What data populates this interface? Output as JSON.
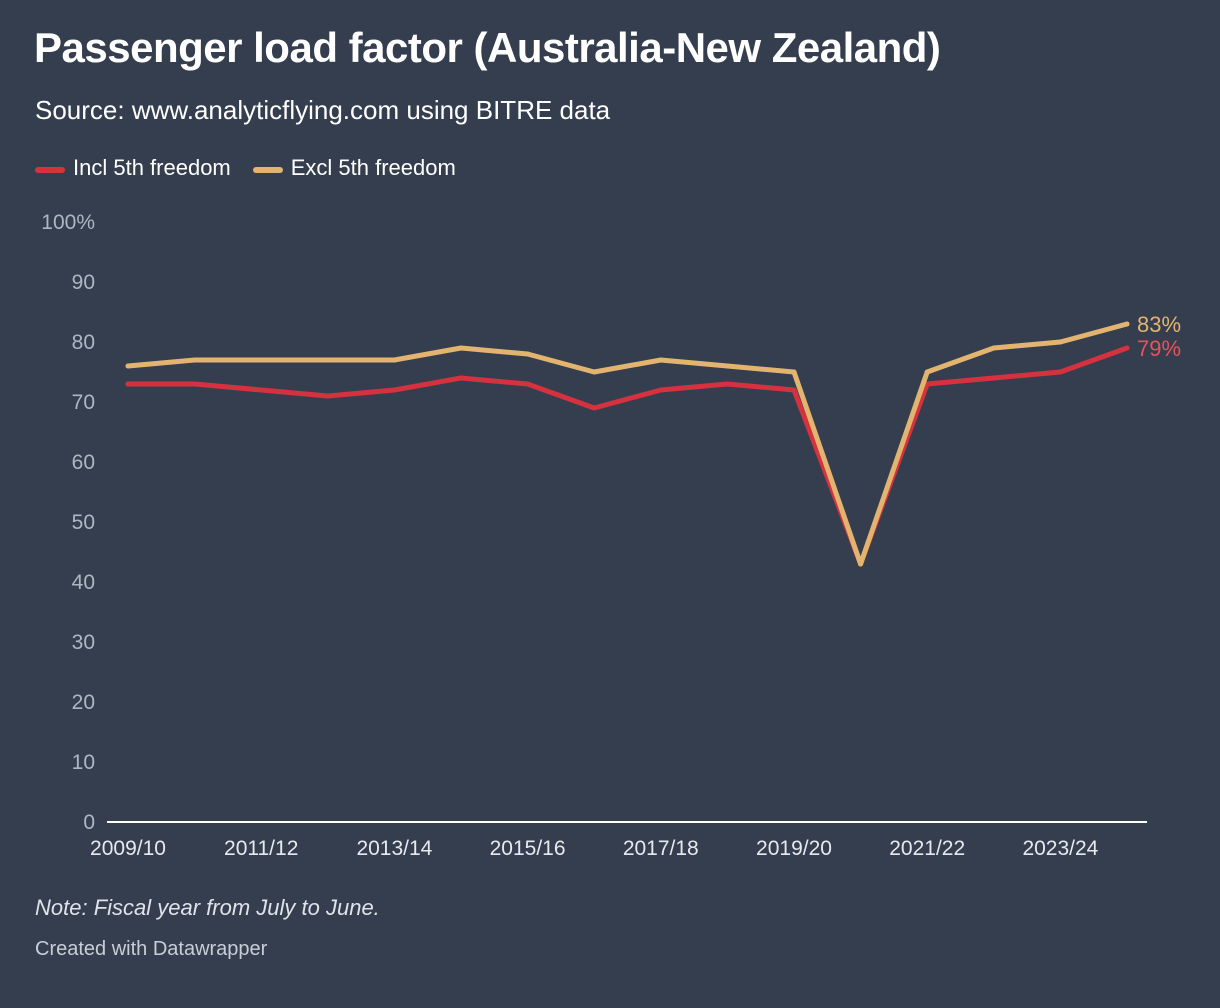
{
  "header": {
    "title": "Passenger load factor (Australia-New Zealand)",
    "subtitle": "Source: www.analyticflying.com using BITRE data"
  },
  "legend": [
    {
      "label": "Incl 5th freedom",
      "color": "#d6313e"
    },
    {
      "label": "Excl 5th freedom",
      "color": "#e3b46f"
    }
  ],
  "footer": {
    "note": "Note: Fiscal year from July to June.",
    "credit": "Created with Datawrapper"
  },
  "chart_data": {
    "type": "line",
    "title": "Passenger load factor (Australia-New Zealand)",
    "xlabel": "",
    "ylabel": "",
    "ylim": [
      0,
      100
    ],
    "y_ticks": [
      0,
      10,
      20,
      30,
      40,
      50,
      60,
      70,
      80,
      90,
      100
    ],
    "y_tick_labels": [
      "0",
      "10",
      "20",
      "30",
      "40",
      "50",
      "60",
      "70",
      "80",
      "90",
      "100%"
    ],
    "x": [
      "2009/10",
      "2010/11",
      "2011/12",
      "2012/13",
      "2013/14",
      "2014/15",
      "2015/16",
      "2016/17",
      "2017/18",
      "2018/19",
      "2019/20",
      "2020/21",
      "2021/22",
      "2022/23",
      "2023/24",
      "2024/25"
    ],
    "x_tick_labels": [
      "2009/10",
      "2011/12",
      "2013/14",
      "2015/16",
      "2017/18",
      "2019/20",
      "2021/22",
      "2023/24"
    ],
    "series": [
      {
        "name": "Incl 5th freedom",
        "color": "#d6313e",
        "label_color": "#e9515d",
        "values": [
          73,
          73,
          72,
          71,
          72,
          74,
          73,
          69,
          72,
          73,
          72,
          43,
          73,
          74,
          75,
          79
        ],
        "end_label": "79%"
      },
      {
        "name": "Excl 5th freedom",
        "color": "#e3b46f",
        "label_color": "#e3b46f",
        "values": [
          76,
          77,
          77,
          77,
          77,
          79,
          78,
          75,
          77,
          76,
          75,
          43,
          75,
          79,
          80,
          83
        ],
        "end_label": "83%"
      }
    ]
  }
}
